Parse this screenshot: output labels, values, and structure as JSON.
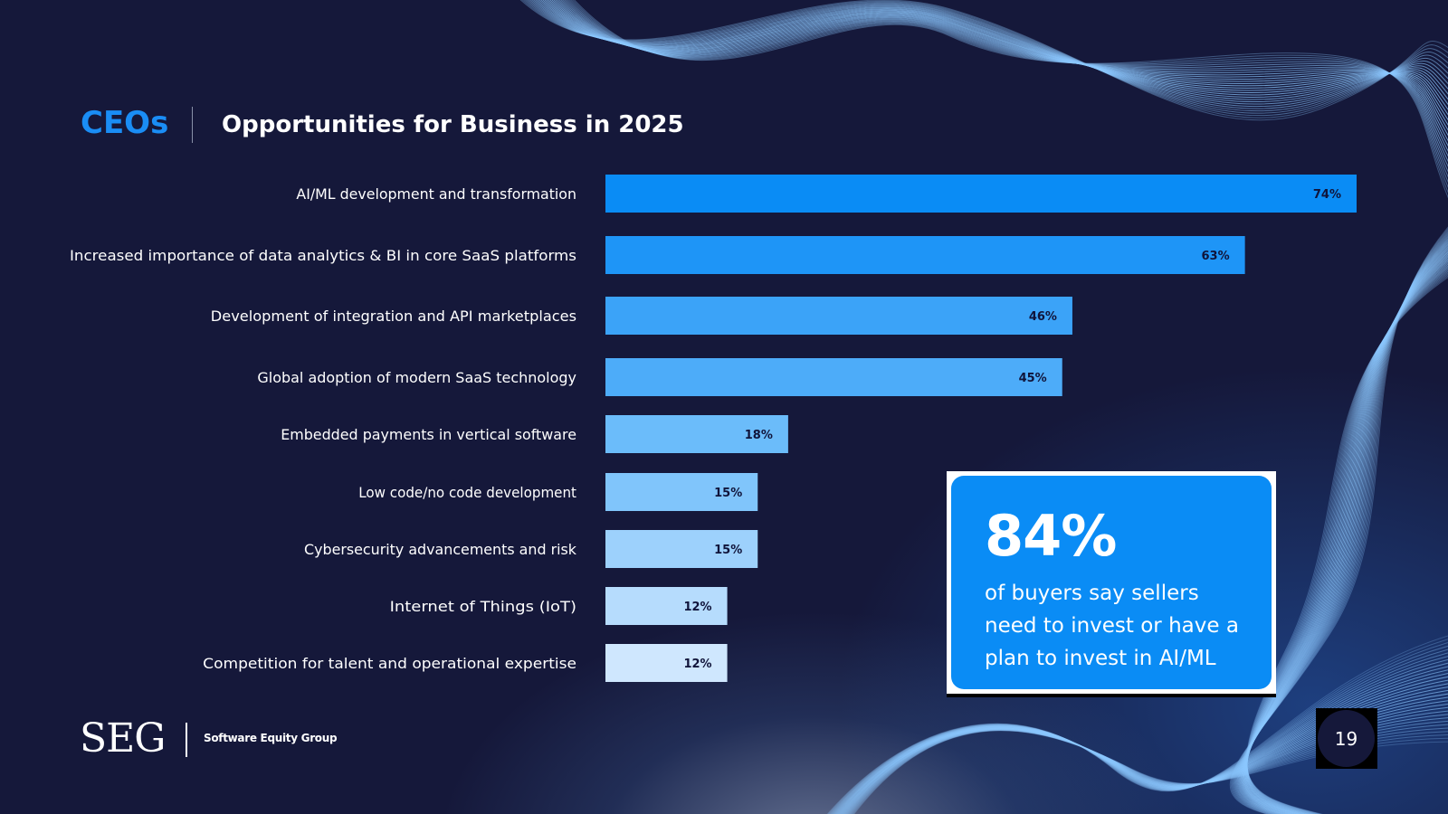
{
  "header": {
    "brand": "CEOs",
    "title": "Opportunities for Business in 2025"
  },
  "colors": {
    "background": "#15183a",
    "accent": "#1a8df5",
    "callout": "#0a8cf5",
    "bar_gradient": [
      "#0a8cf5",
      "#1e95f7",
      "#3ba3f8",
      "#4dacf9",
      "#6bbcfa",
      "#80c5fb",
      "#9dd1fc",
      "#b6dcfd",
      "#cfe7fe"
    ]
  },
  "chart_data": {
    "type": "bar",
    "orientation": "horizontal",
    "categories": [
      "AI/ML development and transformation",
      "Increased importance of data analytics & BI in core SaaS platforms",
      "Development of integration and API marketplaces",
      "Global adoption of modern SaaS technology",
      "Embedded payments in vertical software",
      "Low code/no code development",
      "Cybersecurity advancements and risk",
      "Internet of Things (IoT)",
      "Competition for talent and operational expertise"
    ],
    "values": [
      74,
      63,
      46,
      45,
      18,
      15,
      15,
      12,
      12
    ],
    "value_labels": [
      "74%",
      "63%",
      "46%",
      "45%",
      "18%",
      "15%",
      "15%",
      "12%",
      "12%"
    ],
    "xlim": [
      0,
      74
    ],
    "grid": false,
    "legend": "none"
  },
  "callout": {
    "stat": "84%",
    "text": "of buyers say sellers need to invest or have a plan to invest in AI/ML"
  },
  "footer": {
    "logo": "SEG",
    "company": "Software Equity Group",
    "page_number": "19"
  }
}
